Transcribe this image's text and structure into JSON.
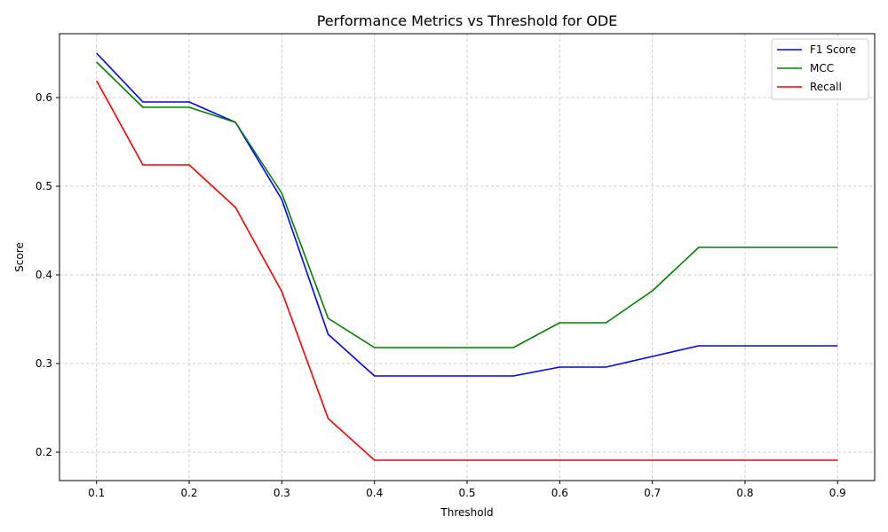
{
  "chart_data": {
    "type": "line",
    "title": "Performance Metrics vs Threshold for ODE",
    "xlabel": "Threshold",
    "ylabel": "Score",
    "xlim": [
      0.06,
      0.94
    ],
    "ylim": [
      0.168,
      0.672
    ],
    "xticks": [
      "0.1",
      "0.2",
      "0.3",
      "0.4",
      "0.5",
      "0.6",
      "0.7",
      "0.8",
      "0.9"
    ],
    "yticks": [
      "0.2",
      "0.3",
      "0.4",
      "0.5",
      "0.6"
    ],
    "grid": true,
    "legend_position": "top-right",
    "x": [
      0.1,
      0.15,
      0.2,
      0.25,
      0.3,
      0.35,
      0.4,
      0.45,
      0.5,
      0.55,
      0.6,
      0.65,
      0.7,
      0.75,
      0.8,
      0.85,
      0.9
    ],
    "series": [
      {
        "name": "F1 Score",
        "color": "#0000ff",
        "values": [
          0.65,
          0.595,
          0.595,
          0.572,
          0.485,
          0.333,
          0.286,
          0.286,
          0.286,
          0.286,
          0.296,
          0.296,
          0.308,
          0.32,
          0.32,
          0.32,
          0.32
        ]
      },
      {
        "name": "MCC",
        "color": "#008000",
        "values": [
          0.64,
          0.589,
          0.589,
          0.572,
          0.492,
          0.351,
          0.318,
          0.318,
          0.318,
          0.318,
          0.346,
          0.346,
          0.382,
          0.431,
          0.431,
          0.431,
          0.431
        ]
      },
      {
        "name": "Recall",
        "color": "#ff0000",
        "values": [
          0.619,
          0.524,
          0.524,
          0.476,
          0.381,
          0.238,
          0.191,
          0.191,
          0.191,
          0.191,
          0.191,
          0.191,
          0.191,
          0.191,
          0.191,
          0.191,
          0.191
        ]
      }
    ]
  }
}
